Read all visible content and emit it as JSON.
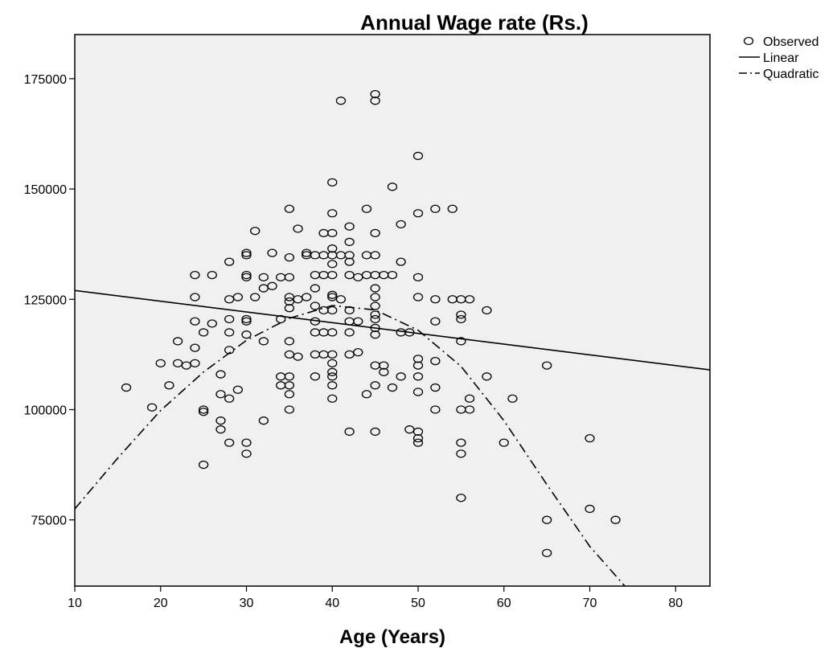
{
  "chart_data": {
    "type": "scatter",
    "title": "Annual Wage rate (Rs.)",
    "xlabel": "Age (Years)",
    "ylabel": "",
    "xlim": [
      10,
      84
    ],
    "ylim": [
      60000,
      185000
    ],
    "x_ticks": [
      10,
      20,
      30,
      40,
      50,
      60,
      70,
      80
    ],
    "y_ticks": [
      75000,
      100000,
      125000,
      150000,
      175000
    ],
    "grid": false,
    "legend": {
      "position": "top-right",
      "entries": [
        "Observed",
        "Linear",
        "Quadratic"
      ]
    },
    "series": [
      {
        "name": "Observed",
        "marker": "open-circle",
        "points": [
          [
            16,
            105000
          ],
          [
            19,
            100500
          ],
          [
            20,
            110500
          ],
          [
            21,
            105500
          ],
          [
            22,
            115500
          ],
          [
            22,
            110500
          ],
          [
            23,
            110000
          ],
          [
            24,
            130500
          ],
          [
            24,
            125500
          ],
          [
            24,
            120000
          ],
          [
            24,
            114000
          ],
          [
            24,
            110500
          ],
          [
            25,
            117500
          ],
          [
            25,
            100000
          ],
          [
            25,
            99500
          ],
          [
            25,
            87500
          ],
          [
            26,
            130500
          ],
          [
            26,
            119500
          ],
          [
            27,
            108000
          ],
          [
            27,
            103500
          ],
          [
            27,
            97500
          ],
          [
            27,
            95500
          ],
          [
            28,
            133500
          ],
          [
            28,
            125000
          ],
          [
            28,
            120500
          ],
          [
            28,
            117500
          ],
          [
            28,
            113500
          ],
          [
            28,
            102500
          ],
          [
            28,
            92500
          ],
          [
            29,
            125500
          ],
          [
            29,
            104500
          ],
          [
            30,
            135500
          ],
          [
            30,
            135000
          ],
          [
            30,
            130500
          ],
          [
            30,
            130000
          ],
          [
            30,
            120500
          ],
          [
            30,
            120000
          ],
          [
            30,
            117000
          ],
          [
            30,
            92500
          ],
          [
            30,
            90000
          ],
          [
            31,
            140500
          ],
          [
            31,
            125500
          ],
          [
            32,
            130000
          ],
          [
            32,
            127500
          ],
          [
            32,
            115500
          ],
          [
            32,
            97500
          ],
          [
            33,
            135500
          ],
          [
            33,
            128000
          ],
          [
            34,
            130000
          ],
          [
            34,
            120500
          ],
          [
            34,
            107500
          ],
          [
            34,
            105500
          ],
          [
            35,
            145500
          ],
          [
            35,
            134500
          ],
          [
            35,
            130000
          ],
          [
            35,
            125500
          ],
          [
            35,
            124500
          ],
          [
            35,
            123000
          ],
          [
            35,
            115500
          ],
          [
            35,
            112500
          ],
          [
            35,
            107500
          ],
          [
            35,
            105500
          ],
          [
            35,
            103500
          ],
          [
            35,
            100000
          ],
          [
            36,
            141000
          ],
          [
            36,
            125000
          ],
          [
            36,
            112000
          ],
          [
            37,
            135500
          ],
          [
            37,
            135000
          ],
          [
            37,
            125500
          ],
          [
            38,
            135000
          ],
          [
            38,
            130500
          ],
          [
            38,
            127500
          ],
          [
            38,
            123500
          ],
          [
            38,
            120000
          ],
          [
            38,
            117500
          ],
          [
            38,
            112500
          ],
          [
            38,
            107500
          ],
          [
            39,
            140000
          ],
          [
            39,
            135000
          ],
          [
            39,
            130500
          ],
          [
            39,
            122500
          ],
          [
            39,
            117500
          ],
          [
            39,
            112500
          ],
          [
            40,
            151500
          ],
          [
            40,
            144500
          ],
          [
            40,
            140000
          ],
          [
            40,
            136500
          ],
          [
            40,
            135000
          ],
          [
            40,
            133000
          ],
          [
            40,
            130500
          ],
          [
            40,
            126000
          ],
          [
            40,
            125500
          ],
          [
            40,
            122500
          ],
          [
            40,
            117500
          ],
          [
            40,
            112500
          ],
          [
            40,
            110500
          ],
          [
            40,
            108500
          ],
          [
            40,
            107500
          ],
          [
            40,
            105500
          ],
          [
            40,
            102500
          ],
          [
            41,
            170000
          ],
          [
            41,
            135000
          ],
          [
            41,
            125000
          ],
          [
            42,
            141500
          ],
          [
            42,
            138000
          ],
          [
            42,
            135000
          ],
          [
            42,
            133500
          ],
          [
            42,
            130500
          ],
          [
            42,
            122500
          ],
          [
            42,
            120000
          ],
          [
            42,
            117500
          ],
          [
            42,
            112500
          ],
          [
            42,
            95000
          ],
          [
            43,
            130000
          ],
          [
            43,
            120000
          ],
          [
            43,
            113000
          ],
          [
            44,
            145500
          ],
          [
            44,
            135000
          ],
          [
            44,
            130500
          ],
          [
            44,
            103500
          ],
          [
            45,
            171500
          ],
          [
            45,
            170000
          ],
          [
            45,
            140000
          ],
          [
            45,
            135000
          ],
          [
            45,
            130500
          ],
          [
            45,
            127500
          ],
          [
            45,
            125500
          ],
          [
            45,
            123500
          ],
          [
            45,
            121500
          ],
          [
            45,
            120500
          ],
          [
            45,
            118500
          ],
          [
            45,
            117000
          ],
          [
            45,
            110000
          ],
          [
            45,
            105500
          ],
          [
            45,
            95000
          ],
          [
            46,
            130500
          ],
          [
            46,
            110000
          ],
          [
            46,
            108500
          ],
          [
            47,
            150500
          ],
          [
            47,
            130500
          ],
          [
            47,
            105000
          ],
          [
            48,
            142000
          ],
          [
            48,
            133500
          ],
          [
            48,
            117500
          ],
          [
            48,
            107500
          ],
          [
            49,
            117500
          ],
          [
            49,
            95500
          ],
          [
            50,
            157500
          ],
          [
            50,
            144500
          ],
          [
            50,
            130000
          ],
          [
            50,
            125500
          ],
          [
            50,
            111500
          ],
          [
            50,
            110000
          ],
          [
            50,
            107500
          ],
          [
            50,
            104000
          ],
          [
            50,
            95000
          ],
          [
            50,
            93500
          ],
          [
            50,
            92500
          ],
          [
            52,
            145500
          ],
          [
            52,
            125000
          ],
          [
            52,
            120000
          ],
          [
            52,
            111000
          ],
          [
            52,
            105000
          ],
          [
            52,
            100000
          ],
          [
            54,
            145500
          ],
          [
            54,
            125000
          ],
          [
            55,
            125000
          ],
          [
            55,
            121500
          ],
          [
            55,
            120500
          ],
          [
            55,
            115500
          ],
          [
            55,
            100000
          ],
          [
            55,
            92500
          ],
          [
            55,
            90000
          ],
          [
            55,
            80000
          ],
          [
            56,
            125000
          ],
          [
            56,
            102500
          ],
          [
            56,
            100000
          ],
          [
            58,
            122500
          ],
          [
            58,
            107500
          ],
          [
            60,
            92500
          ],
          [
            61,
            102500
          ],
          [
            65,
            110000
          ],
          [
            65,
            75000
          ],
          [
            65,
            67500
          ],
          [
            70,
            93500
          ],
          [
            70,
            77500
          ],
          [
            73,
            75000
          ]
        ]
      },
      {
        "name": "Linear",
        "line_style": "solid",
        "points": [
          [
            10,
            127000
          ],
          [
            84,
            109000
          ]
        ]
      },
      {
        "name": "Quadratic",
        "line_style": "dash-dot",
        "points": [
          [
            10,
            77500
          ],
          [
            15,
            89000
          ],
          [
            20,
            99800
          ],
          [
            25,
            108500
          ],
          [
            30,
            115700
          ],
          [
            35,
            120700
          ],
          [
            40,
            123600
          ],
          [
            45,
            122600
          ],
          [
            50,
            118000
          ],
          [
            55,
            109800
          ],
          [
            60,
            97500
          ],
          [
            65,
            83000
          ],
          [
            70,
            69000
          ],
          [
            75,
            58000
          ]
        ]
      }
    ]
  }
}
